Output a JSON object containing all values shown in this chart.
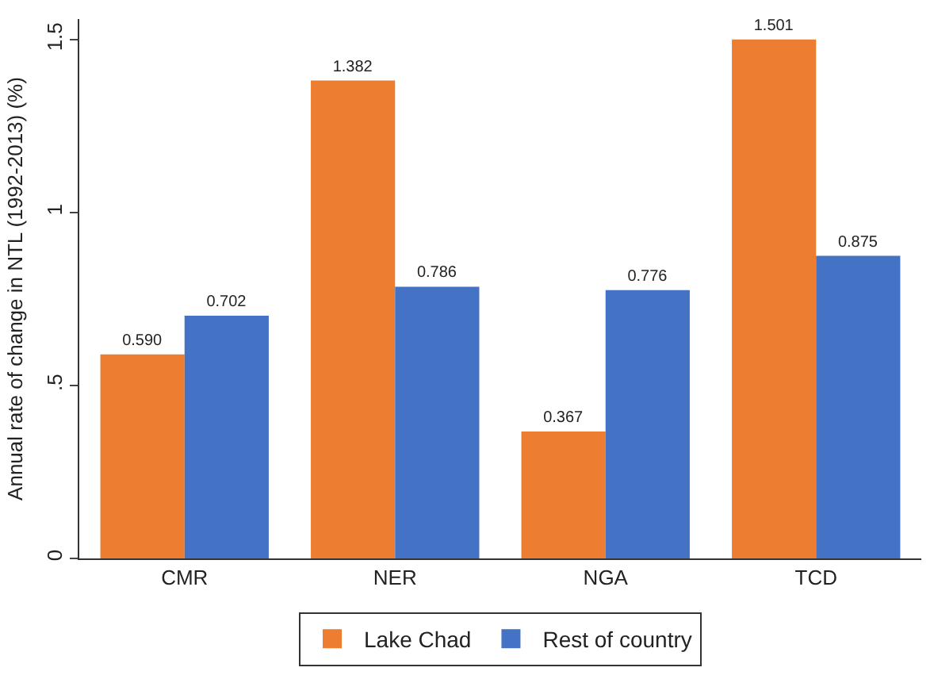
{
  "chart_data": {
    "type": "bar",
    "ylabel": "Annual rate of change in NTL (1992-2013) (%)",
    "categories": [
      "CMR",
      "NER",
      "NGA",
      "TCD"
    ],
    "series": [
      {
        "name": "Lake Chad",
        "color": "#ed7d31",
        "values": [
          0.59,
          1.382,
          0.367,
          1.501
        ],
        "value_labels": [
          "0.590",
          "1.382",
          "0.367",
          "1.501"
        ]
      },
      {
        "name": "Rest of country",
        "color": "#4472c4",
        "values": [
          0.702,
          0.786,
          0.776,
          0.875
        ],
        "value_labels": [
          "0.702",
          "0.786",
          "0.776",
          "0.875"
        ]
      }
    ],
    "ylim": [
      0,
      1.56
    ],
    "yticks": [
      0,
      {
        "value": 0.5,
        "label": ".5"
      },
      1,
      1.5
    ],
    "grid": false,
    "legend": "bottom"
  }
}
